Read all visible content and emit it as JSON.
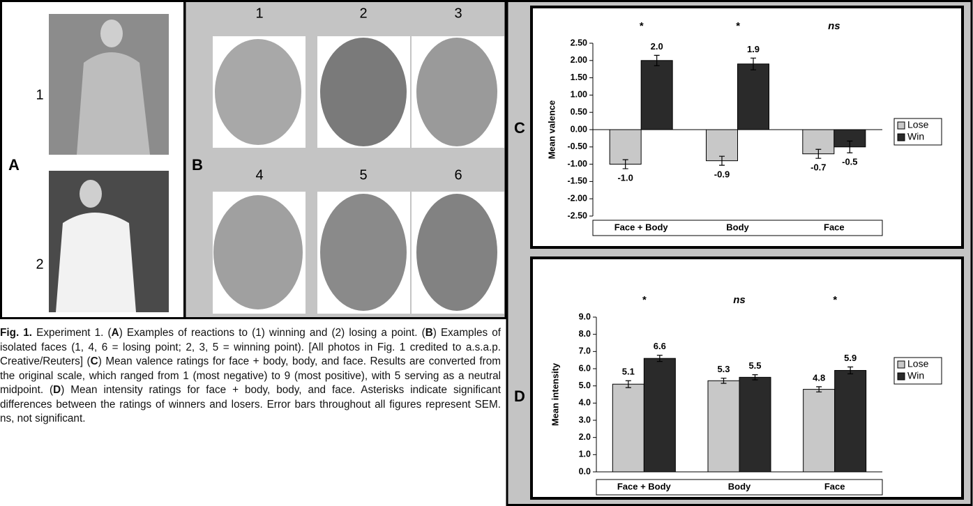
{
  "panels": {
    "A": {
      "letter": "A",
      "photo_labels": [
        "1",
        "2"
      ]
    },
    "B": {
      "letter": "B",
      "photo_labels": [
        "1",
        "2",
        "3",
        "4",
        "5",
        "6"
      ]
    }
  },
  "chart_data": [
    {
      "type": "bar",
      "panel": "C",
      "ylabel": "Mean valence",
      "categories": [
        "Face + Body",
        "Body",
        "Face"
      ],
      "series": [
        {
          "name": "Lose",
          "color": "#c8c8c8",
          "values": [
            -1.0,
            -0.9,
            -0.7
          ],
          "value_labels": [
            "-1.0",
            "-0.9",
            "-0.7"
          ],
          "errors": [
            0.13,
            0.13,
            0.13
          ]
        },
        {
          "name": "Win",
          "color": "#2a2a2a",
          "values": [
            2.0,
            1.9,
            -0.5
          ],
          "value_labels": [
            "2.0",
            "1.9",
            "-0.5"
          ],
          "errors": [
            0.15,
            0.17,
            0.17
          ]
        }
      ],
      "annotations": [
        "*",
        "*",
        "ns"
      ],
      "ylim": [
        -2.5,
        2.5
      ],
      "yticks": [
        {
          "value": -2.5,
          "label": "-2.50"
        },
        {
          "value": -2,
          "label": "-2.00"
        },
        {
          "value": -1.5,
          "label": "-1.50"
        },
        {
          "value": -1,
          "label": "-1.00"
        },
        {
          "value": -0.5,
          "label": "-0.50"
        },
        {
          "value": 0,
          "label": "0.00"
        },
        {
          "value": 0.5,
          "label": "0.50"
        },
        {
          "value": 1,
          "label": "1.00"
        },
        {
          "value": 1.5,
          "label": "1.50"
        },
        {
          "value": 2,
          "label": "2.00"
        },
        {
          "value": 2.5,
          "label": "2.50"
        }
      ],
      "legend": "right"
    },
    {
      "type": "bar",
      "panel": "D",
      "ylabel": "Mean intensity",
      "categories": [
        "Face + Body",
        "Body",
        "Face"
      ],
      "series": [
        {
          "name": "Lose",
          "color": "#c8c8c8",
          "values": [
            5.1,
            5.3,
            4.8
          ],
          "value_labels": [
            "5.1",
            "5.3",
            "4.8"
          ],
          "errors": [
            0.2,
            0.15,
            0.15
          ]
        },
        {
          "name": "Win",
          "color": "#2a2a2a",
          "values": [
            6.6,
            5.5,
            5.9
          ],
          "value_labels": [
            "6.6",
            "5.5",
            "5.9"
          ],
          "errors": [
            0.18,
            0.15,
            0.2
          ]
        }
      ],
      "annotations": [
        "*",
        "ns",
        "*"
      ],
      "ylim": [
        0,
        9
      ],
      "yticks": [
        {
          "value": 0,
          "label": "0.0"
        },
        {
          "value": 1,
          "label": "1.0"
        },
        {
          "value": 2,
          "label": "2.0"
        },
        {
          "value": 3,
          "label": "3.0"
        },
        {
          "value": 4,
          "label": "4.0"
        },
        {
          "value": 5,
          "label": "5.0"
        },
        {
          "value": 6,
          "label": "6.0"
        },
        {
          "value": 7,
          "label": "7.0"
        },
        {
          "value": 8,
          "label": "8.0"
        },
        {
          "value": 9,
          "label": "9.0"
        }
      ],
      "legend": "right"
    }
  ],
  "caption": [
    {
      "text": "Fig. 1.",
      "bold": true
    },
    {
      "text": " Experiment 1. (",
      "bold": false
    },
    {
      "text": "A",
      "bold": true
    },
    {
      "text": ") Examples of reactions to (1) winning and (2) losing a point. (",
      "bold": false
    },
    {
      "text": "B",
      "bold": true
    },
    {
      "text": ") Examples of isolated faces (1, 4, 6 = losing point; 2, 3, 5 = winning point). [All photos in Fig. 1 credited to a.s.a.p. Creative/Reuters] (",
      "bold": false
    },
    {
      "text": "C",
      "bold": true
    },
    {
      "text": ") Mean valence ratings for face + body, body, and face. Results are converted from the original scale, which ranged from 1 (most negative) to 9 (most positive), with 5 serving as a neutral midpoint. (",
      "bold": false
    },
    {
      "text": "D",
      "bold": true
    },
    {
      "text": ") Mean intensity ratings for face + body, body, and face. Asterisks indicate significant differences between the ratings of winners and losers. Error bars throughout all figures represent SEM. ns, not significant.",
      "bold": false
    }
  ]
}
